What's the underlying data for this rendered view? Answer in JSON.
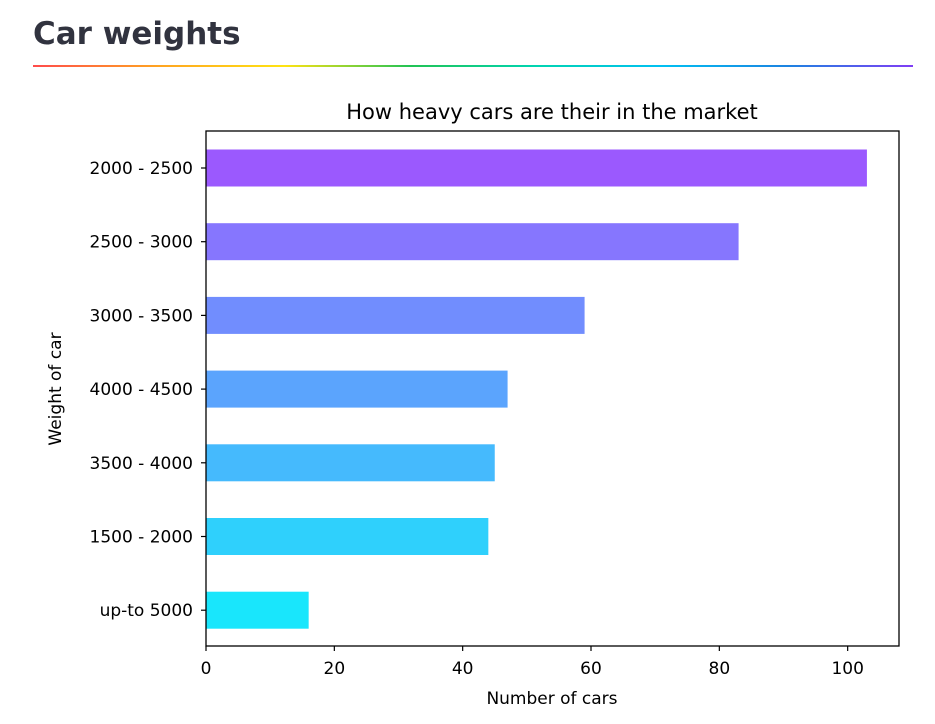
{
  "page": {
    "title": "Car weights"
  },
  "chart_data": {
    "type": "bar",
    "orientation": "horizontal",
    "title": "How heavy cars are their in the market",
    "xlabel": "Number of cars",
    "ylabel": "Weight of car",
    "categories": [
      "2000 - 2500",
      "2500 - 3000",
      "3000 - 3500",
      "4000 - 4500",
      "3500 - 4000",
      "1500 - 2000",
      "up-to 5000"
    ],
    "values": [
      103,
      83,
      59,
      47,
      45,
      44,
      16
    ],
    "colors": [
      "#9b59fe",
      "#8676fe",
      "#718dfe",
      "#5ba4fd",
      "#45bafd",
      "#2fd0fc",
      "#19e6fc"
    ],
    "xlim": [
      0,
      108
    ],
    "xticks": [
      0,
      20,
      40,
      60,
      80,
      100
    ],
    "grid": false,
    "legend": "none"
  }
}
